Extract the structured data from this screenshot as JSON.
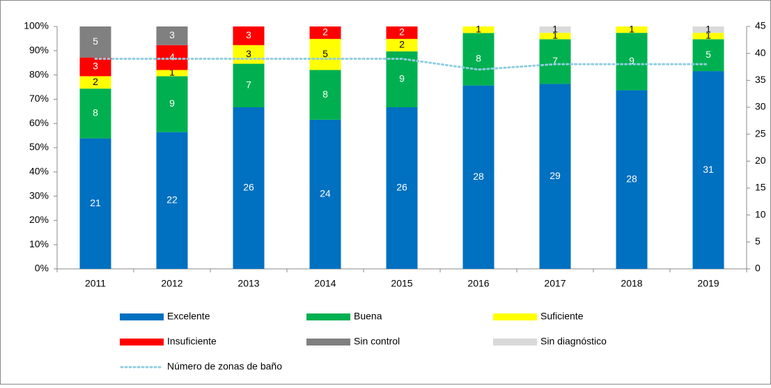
{
  "chart_data": {
    "type": "bar",
    "stacked": "percent",
    "categories": [
      "2011",
      "2012",
      "2013",
      "2014",
      "2015",
      "2016",
      "2017",
      "2018",
      "2019"
    ],
    "series": [
      {
        "name": "Excelente",
        "color": "#0070c0",
        "label_color": "#ffffff",
        "values": [
          21,
          22,
          26,
          24,
          26,
          28,
          29,
          28,
          31
        ]
      },
      {
        "name": "Buena",
        "color": "#00b050",
        "label_color": "#ffffff",
        "values": [
          8,
          9,
          7,
          8,
          9,
          8,
          7,
          9,
          5
        ]
      },
      {
        "name": "Suficiente",
        "color": "#ffff00",
        "label_color": "#000000",
        "values": [
          2,
          1,
          3,
          5,
          2,
          1,
          1,
          1,
          1
        ]
      },
      {
        "name": "Insuficiente",
        "color": "#ff0000",
        "label_color": "#ffffff",
        "values": [
          3,
          4,
          3,
          2,
          2,
          0,
          0,
          0,
          0
        ]
      },
      {
        "name": "Sin control",
        "color": "#808080",
        "label_color": "#ffffff",
        "values": [
          5,
          3,
          0,
          0,
          0,
          0,
          0,
          0,
          0
        ]
      },
      {
        "name": "Sin diagnóstico",
        "color": "#d9d9d9",
        "label_color": "#000000",
        "values": [
          0,
          0,
          0,
          0,
          0,
          0,
          1,
          0,
          1
        ]
      },
      {
        "name": "Número de zonas de baño",
        "type": "line",
        "axis": "y2",
        "color": "#8fcde0",
        "dashed": true,
        "values": [
          39,
          39,
          39,
          39,
          39,
          37,
          38,
          38,
          38
        ]
      }
    ],
    "ylim": [
      0,
      100
    ],
    "yticks": [
      {
        "value": 0,
        "label": "0%"
      },
      {
        "value": 10,
        "label": "10%"
      },
      {
        "value": 20,
        "label": "20%"
      },
      {
        "value": 30,
        "label": "30%"
      },
      {
        "value": 40,
        "label": "40%"
      },
      {
        "value": 50,
        "label": "50%"
      },
      {
        "value": 60,
        "label": "60%"
      },
      {
        "value": 70,
        "label": "70%"
      },
      {
        "value": 80,
        "label": "80%"
      },
      {
        "value": 90,
        "label": "90%"
      },
      {
        "value": 100,
        "label": "100%"
      }
    ],
    "y2lim": [
      0,
      45
    ],
    "y2ticks": [
      0,
      5,
      10,
      15,
      20,
      25,
      30,
      35,
      40,
      45
    ],
    "grid": false,
    "legend": "bottom"
  }
}
